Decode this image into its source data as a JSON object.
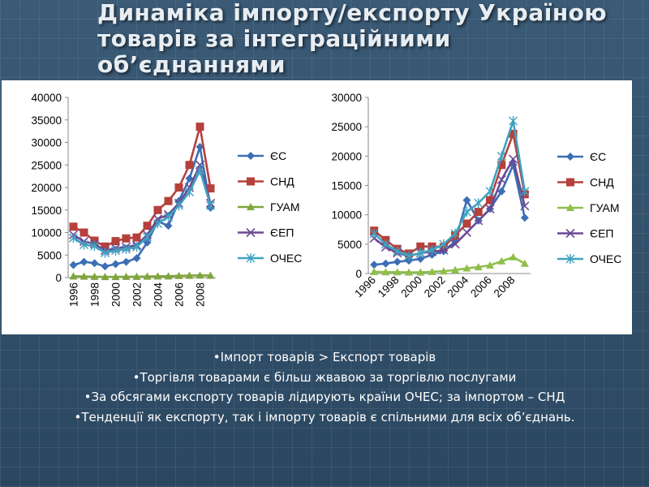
{
  "title": {
    "lines": [
      "Динаміка імпорту/експорту Україною",
      "товарів за інтеграційними",
      "об’єднаннями"
    ]
  },
  "bullets": [
    "Імпорт товарів > Експорт товарів",
    "Торгівля товарами є більш жвавою за торгівлю послугами",
    "За обсягами експорту товарів лідирують країни ОЧЕС; за імпортом – СНД",
    "Тенденції як експорту, так і імпорту товарів є спільними для  всіх об’єднань."
  ],
  "chart_data": [
    {
      "type": "line",
      "x": [
        1996,
        1997,
        1998,
        1999,
        2000,
        2001,
        2002,
        2003,
        2004,
        2005,
        2006,
        2007,
        2008,
        2009
      ],
      "x_tick_labels": [
        "1996",
        "1998",
        "2000",
        "2002",
        "2004",
        "2006",
        "2008"
      ],
      "ylim": [
        0,
        40000
      ],
      "y_ticks": [
        "0",
        "5000",
        "10000",
        "15000",
        "20000",
        "25000",
        "30000",
        "35000",
        "40000"
      ],
      "legend_position": "right",
      "series": [
        {
          "name": "ЄС",
          "color": "#3c6eb4",
          "marker": "diamond",
          "values": [
            2800,
            3500,
            3200,
            2500,
            3000,
            3500,
            4300,
            7800,
            12500,
            11500,
            17000,
            22000,
            29000,
            15500
          ]
        },
        {
          "name": "СНД",
          "color": "#b5403c",
          "marker": "square",
          "values": [
            11300,
            10000,
            8200,
            6900,
            8100,
            8700,
            8900,
            11500,
            15000,
            17000,
            20000,
            25000,
            33500,
            19800
          ]
        },
        {
          "name": "ГУАМ",
          "color": "#7fa63c",
          "marker": "triangle",
          "values": [
            300,
            250,
            200,
            150,
            150,
            200,
            200,
            250,
            300,
            300,
            400,
            450,
            500,
            450
          ]
        },
        {
          "name": "ЄЕП",
          "color": "#6b4a94",
          "marker": "x",
          "values": [
            9500,
            8000,
            7500,
            6000,
            6500,
            6800,
            7200,
            9500,
            13000,
            14000,
            16500,
            20000,
            25000,
            16500
          ]
        },
        {
          "name": "ОЧЕС",
          "color": "#3fa2c0",
          "marker": "asterisk",
          "values": [
            8800,
            7300,
            7000,
            5500,
            6000,
            6300,
            6800,
            9000,
            12000,
            13500,
            16000,
            19000,
            23800,
            16000
          ]
        }
      ]
    },
    {
      "type": "line",
      "x": [
        1996,
        1997,
        1998,
        1999,
        2000,
        2001,
        2002,
        2003,
        2004,
        2005,
        2006,
        2007,
        2008,
        2009
      ],
      "x_tick_labels": [
        "1996",
        "1998",
        "2000",
        "2002",
        "2004",
        "2006",
        "2008"
      ],
      "ylim": [
        0,
        30000
      ],
      "y_ticks": [
        "0",
        "5000",
        "10000",
        "15000",
        "20000",
        "25000",
        "30000"
      ],
      "legend_position": "right",
      "series": [
        {
          "name": "ЄС",
          "color": "#3c6eb4",
          "marker": "diamond",
          "values": [
            1500,
            1700,
            2000,
            2200,
            2500,
            3200,
            3800,
            5500,
            12500,
            9000,
            11000,
            14000,
            18500,
            9500
          ]
        },
        {
          "name": "СНД",
          "color": "#b5403c",
          "marker": "square",
          "values": [
            7300,
            5700,
            4200,
            3400,
            4600,
            4600,
            4500,
            6500,
            8500,
            10500,
            12500,
            18500,
            23800,
            13500
          ]
        },
        {
          "name": "ГУАМ",
          "color": "#8fbf4a",
          "marker": "triangle",
          "values": [
            300,
            250,
            250,
            200,
            200,
            300,
            400,
            600,
            900,
            1100,
            1400,
            2100,
            2800,
            1700
          ]
        },
        {
          "name": "ЄЕП",
          "color": "#6b4a94",
          "marker": "x",
          "values": [
            6000,
            4500,
            3500,
            3000,
            3500,
            3700,
            4000,
            5000,
            7000,
            9000,
            11000,
            16000,
            19500,
            11500
          ]
        },
        {
          "name": "ОЧЕС",
          "color": "#3fa2c0",
          "marker": "asterisk",
          "values": [
            6800,
            5000,
            3800,
            3000,
            3500,
            4000,
            5000,
            6800,
            10500,
            12000,
            14000,
            20000,
            26000,
            14000
          ]
        }
      ]
    }
  ]
}
